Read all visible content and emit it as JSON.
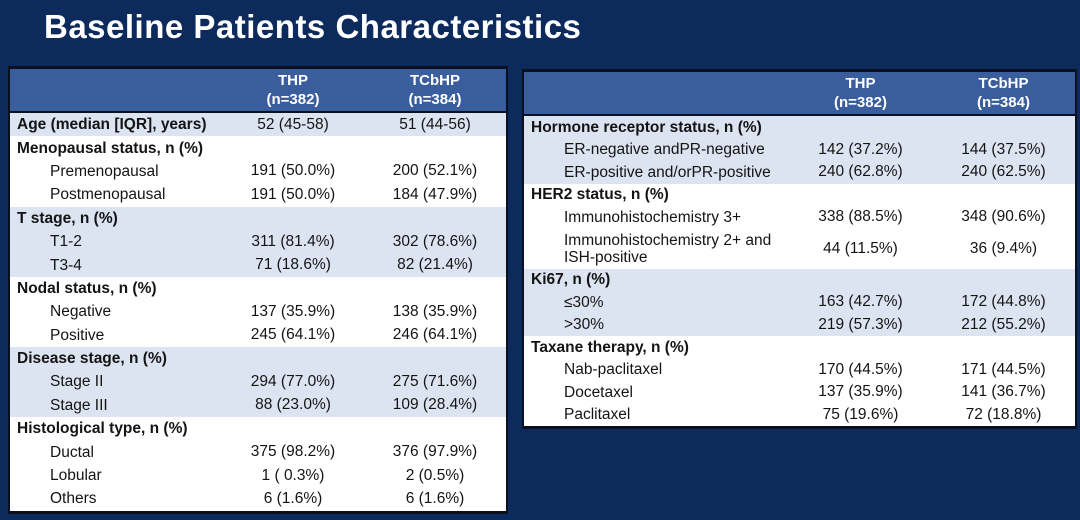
{
  "title": "Baseline Patients Characteristics",
  "colors": {
    "background": "#0d2a5c",
    "table_header_bg": "#3a5d9e",
    "band_light_blue": "#dce3f1",
    "band_white": "#ffffff",
    "border_dark": "#0b101e",
    "title_text": "#ffffff",
    "body_text": "#141414"
  },
  "left_table": {
    "columns": [
      {
        "name": "THP",
        "n": "(n=382)"
      },
      {
        "name": "TCbHP",
        "n": "(n=384)"
      }
    ],
    "rows": [
      {
        "label": "Age (median [IQR], years)",
        "bold": true,
        "indent": false,
        "band": "light",
        "thp": "52 (45-58)",
        "tcbhp": "51 (44-56)"
      },
      {
        "label": "Menopausal status, n (%)",
        "bold": true,
        "indent": false,
        "band": "white",
        "thp": "",
        "tcbhp": ""
      },
      {
        "label": "Premenopausal",
        "bold": false,
        "indent": true,
        "band": "white",
        "thp": "191 (50.0%)",
        "tcbhp": "200 (52.1%)"
      },
      {
        "label": "Postmenopausal",
        "bold": false,
        "indent": true,
        "band": "white",
        "thp": "191 (50.0%)",
        "tcbhp": "184 (47.9%)"
      },
      {
        "label": "T stage, n (%)",
        "bold": true,
        "indent": false,
        "band": "light",
        "thp": "",
        "tcbhp": ""
      },
      {
        "label": "T1-2",
        "bold": false,
        "indent": true,
        "band": "light",
        "thp": "311 (81.4%)",
        "tcbhp": "302 (78.6%)"
      },
      {
        "label": "T3-4",
        "bold": false,
        "indent": true,
        "band": "light",
        "thp": "71 (18.6%)",
        "tcbhp": "82 (21.4%)"
      },
      {
        "label": "Nodal status, n (%)",
        "bold": true,
        "indent": false,
        "band": "white",
        "thp": "",
        "tcbhp": ""
      },
      {
        "label": "Negative",
        "bold": false,
        "indent": true,
        "band": "white",
        "thp": "137 (35.9%)",
        "tcbhp": "138 (35.9%)"
      },
      {
        "label": "Positive",
        "bold": false,
        "indent": true,
        "band": "white",
        "thp": "245 (64.1%)",
        "tcbhp": "246 (64.1%)"
      },
      {
        "label": "Disease stage, n (%)",
        "bold": true,
        "indent": false,
        "band": "light",
        "thp": "",
        "tcbhp": ""
      },
      {
        "label": "Stage II",
        "bold": false,
        "indent": true,
        "band": "light",
        "thp": "294 (77.0%)",
        "tcbhp": "275 (71.6%)"
      },
      {
        "label": "Stage III",
        "bold": false,
        "indent": true,
        "band": "light",
        "thp": "88 (23.0%)",
        "tcbhp": "109 (28.4%)"
      },
      {
        "label": "Histological type, n (%)",
        "bold": true,
        "indent": false,
        "band": "white",
        "thp": "",
        "tcbhp": ""
      },
      {
        "label": "Ductal",
        "bold": false,
        "indent": true,
        "band": "white",
        "thp": "375 (98.2%)",
        "tcbhp": "376 (97.9%)"
      },
      {
        "label": "Lobular",
        "bold": false,
        "indent": true,
        "band": "white",
        "thp": "1 ( 0.3%)",
        "tcbhp": "2 (0.5%)"
      },
      {
        "label": "Others",
        "bold": false,
        "indent": true,
        "band": "white",
        "thp": "6 (1.6%)",
        "tcbhp": "6 (1.6%)"
      }
    ]
  },
  "right_table": {
    "columns": [
      {
        "name": "THP",
        "n": "(n=382)"
      },
      {
        "name": "TCbHP",
        "n": "(n=384)"
      }
    ],
    "rows": [
      {
        "label": "Hormone receptor status, n (%)",
        "bold": true,
        "indent": false,
        "band": "light",
        "thp": "",
        "tcbhp": ""
      },
      {
        "label": "ER-negative andPR-negative",
        "bold": false,
        "indent": true,
        "band": "light",
        "thp": "142 (37.2%)",
        "tcbhp": "144 (37.5%)"
      },
      {
        "label": "ER-positive and/orPR-positive",
        "bold": false,
        "indent": true,
        "band": "light",
        "thp": "240 (62.8%)",
        "tcbhp": "240 (62.5%)"
      },
      {
        "label": "HER2 status, n (%)",
        "bold": true,
        "indent": false,
        "band": "white",
        "thp": "",
        "tcbhp": ""
      },
      {
        "label": "Immunohistochemistry 3+",
        "bold": false,
        "indent": true,
        "band": "white",
        "thp": "338 (88.5%)",
        "tcbhp": "348 (90.6%)"
      },
      {
        "label": "Immunohistochemistry 2+ and\nISH-positive",
        "bold": false,
        "indent": true,
        "band": "white",
        "tall": true,
        "thp": "44 (11.5%)",
        "tcbhp": "36 (9.4%)"
      },
      {
        "label": "Ki67, n (%)",
        "bold": true,
        "indent": false,
        "band": "light",
        "thp": "",
        "tcbhp": ""
      },
      {
        "label": "≤30%",
        "bold": false,
        "indent": true,
        "band": "light",
        "thp": "163 (42.7%)",
        "tcbhp": "172 (44.8%)"
      },
      {
        "label": ">30%",
        "bold": false,
        "indent": true,
        "band": "light",
        "thp": "219 (57.3%)",
        "tcbhp": "212 (55.2%)"
      },
      {
        "label": "Taxane therapy, n (%)",
        "bold": true,
        "indent": false,
        "band": "white",
        "thp": "",
        "tcbhp": ""
      },
      {
        "label": "Nab-paclitaxel",
        "bold": false,
        "indent": true,
        "band": "white",
        "thp": "170 (44.5%)",
        "tcbhp": "171 (44.5%)"
      },
      {
        "label": "Docetaxel",
        "bold": false,
        "indent": true,
        "band": "white",
        "thp": "137 (35.9%)",
        "tcbhp": "141 (36.7%)"
      },
      {
        "label": "Paclitaxel",
        "bold": false,
        "indent": true,
        "band": "white",
        "thp": "75 (19.6%)",
        "tcbhp": "72 (18.8%)"
      }
    ]
  }
}
